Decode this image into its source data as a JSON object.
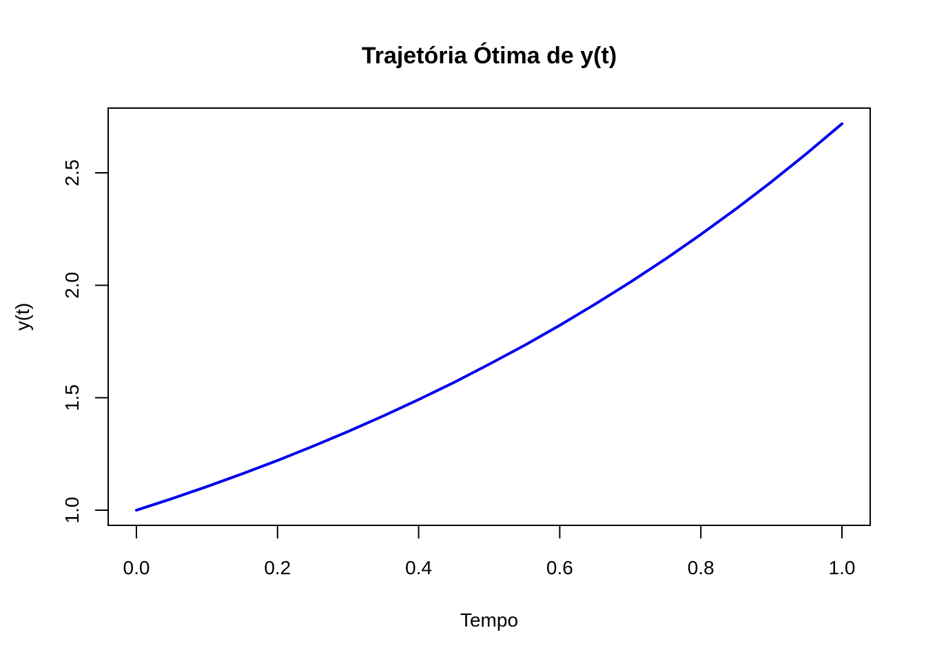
{
  "chart_data": {
    "type": "line",
    "title": "Trajetória Ótima de y(t)",
    "xlabel": "Tempo",
    "ylabel": "y(t)",
    "xlim": [
      0.0,
      1.0
    ],
    "ylim": [
      0.9,
      2.75
    ],
    "x_ticks": [
      "0.0",
      "0.2",
      "0.4",
      "0.6",
      "0.8",
      "1.0"
    ],
    "y_ticks": [
      "1.0",
      "1.5",
      "2.0",
      "2.5"
    ],
    "grid": false,
    "line_color": "#0000ee",
    "series": [
      {
        "x": [
          0.0,
          0.05,
          0.1,
          0.15,
          0.2,
          0.25,
          0.3,
          0.35,
          0.4,
          0.45,
          0.5,
          0.55,
          0.6,
          0.65,
          0.7,
          0.75,
          0.8,
          0.85,
          0.9,
          0.95,
          1.0
        ],
        "values": [
          1.0,
          1.051,
          1.105,
          1.162,
          1.221,
          1.284,
          1.35,
          1.419,
          1.492,
          1.568,
          1.649,
          1.733,
          1.822,
          1.916,
          2.014,
          2.117,
          2.226,
          2.34,
          2.46,
          2.586,
          2.718
        ]
      }
    ]
  }
}
